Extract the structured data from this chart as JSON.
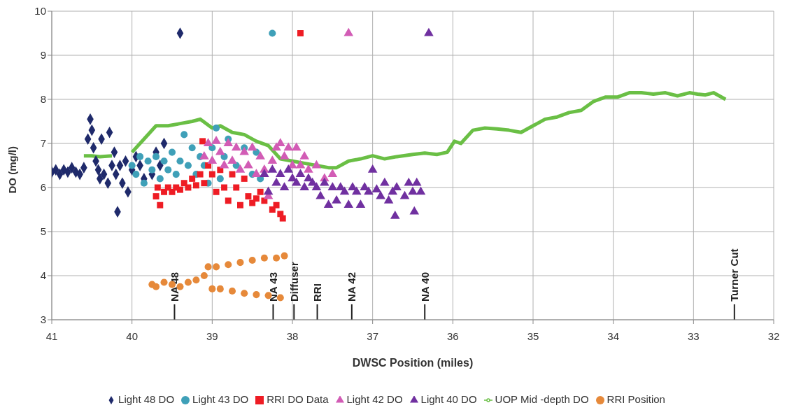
{
  "chart_data": {
    "type": "scatter",
    "xlabel": "DWSC Position (miles)",
    "ylabel": "DO (mg/l)",
    "xlim": [
      41,
      32
    ],
    "xticks": [
      41,
      40,
      39,
      38,
      37,
      36,
      35,
      34,
      33,
      32
    ],
    "ylim": [
      3,
      10
    ],
    "yticks": [
      3,
      4,
      5,
      6,
      7,
      8,
      9,
      10
    ],
    "grid": true,
    "legend": "bottom",
    "series": [
      {
        "name": "Light 48 DO",
        "color": "#1f2a6b",
        "marker": "diamond",
        "x": [
          41.0,
          40.95,
          40.9,
          40.85,
          40.8,
          40.75,
          40.7,
          40.65,
          40.6,
          40.55,
          40.52,
          40.5,
          40.48,
          40.45,
          40.42,
          40.4,
          40.38,
          40.35,
          40.3,
          40.28,
          40.25,
          40.22,
          40.2,
          40.18,
          40.15,
          40.12,
          40.08,
          40.05,
          40.0,
          39.95,
          39.9,
          39.85,
          39.8,
          39.75,
          39.7,
          39.65,
          39.6,
          39.55,
          39.4
        ],
        "values": [
          6.35,
          6.4,
          6.3,
          6.4,
          6.35,
          6.45,
          6.35,
          6.3,
          6.45,
          7.1,
          7.55,
          7.3,
          6.9,
          6.6,
          6.4,
          6.2,
          7.1,
          6.3,
          6.1,
          7.25,
          6.5,
          6.8,
          6.3,
          5.45,
          6.5,
          6.1,
          6.6,
          5.9,
          6.4,
          6.7,
          6.5,
          6.2,
          null,
          6.3,
          6.8,
          6.5,
          7.0,
          null,
          9.5
        ]
      },
      {
        "name": "Light 43 DO",
        "color": "#3fa0b8",
        "marker": "circle",
        "x": [
          40.0,
          39.95,
          39.9,
          39.85,
          39.8,
          39.75,
          39.7,
          39.65,
          39.6,
          39.55,
          39.5,
          39.45,
          39.4,
          39.35,
          39.3,
          39.25,
          39.2,
          39.15,
          39.1,
          39.05,
          39.0,
          38.95,
          38.9,
          38.85,
          38.8,
          38.7,
          38.6,
          38.5,
          38.45,
          38.4,
          38.3,
          38.25
        ],
        "values": [
          6.5,
          6.3,
          6.7,
          6.1,
          6.6,
          6.4,
          6.7,
          6.2,
          6.6,
          6.4,
          6.8,
          6.3,
          6.6,
          7.2,
          6.5,
          6.9,
          6.3,
          6.7,
          6.5,
          6.1,
          6.9,
          7.35,
          6.2,
          6.7,
          7.1,
          6.5,
          6.9,
          6.3,
          6.8,
          6.2,
          null,
          9.5
        ]
      },
      {
        "name": "RRI DO Data",
        "color": "#ee1c24",
        "marker": "square",
        "x": [
          39.7,
          39.68,
          39.65,
          39.6,
          39.55,
          39.5,
          39.45,
          39.4,
          39.35,
          39.3,
          39.25,
          39.2,
          39.15,
          39.12,
          39.1,
          39.05,
          39.0,
          38.95,
          38.9,
          38.85,
          38.8,
          38.75,
          38.7,
          38.65,
          38.6,
          38.55,
          38.5,
          38.45,
          38.4,
          38.35,
          38.3,
          38.25,
          38.2,
          38.15,
          38.12,
          37.9
        ],
        "values": [
          5.8,
          6.0,
          5.6,
          5.9,
          6.0,
          5.9,
          6.0,
          5.95,
          6.1,
          6.0,
          6.2,
          6.05,
          6.3,
          7.05,
          6.1,
          6.5,
          6.3,
          5.9,
          6.4,
          6.0,
          5.7,
          6.3,
          6.0,
          5.6,
          6.2,
          5.8,
          5.65,
          5.75,
          5.9,
          5.7,
          null,
          5.5,
          5.6,
          5.4,
          5.3,
          9.5
        ]
      },
      {
        "name": "Light 42 DO",
        "color": "#d25cb5",
        "marker": "triangle",
        "x": [
          39.1,
          39.05,
          39.0,
          38.95,
          38.9,
          38.85,
          38.8,
          38.75,
          38.7,
          38.65,
          38.6,
          38.55,
          38.5,
          38.45,
          38.4,
          38.35,
          38.3,
          38.25,
          38.2,
          38.15,
          38.1,
          38.05,
          38.0,
          37.95,
          37.9,
          37.85,
          37.8,
          37.7,
          37.6,
          37.5,
          37.3
        ],
        "values": [
          6.7,
          7.0,
          6.6,
          7.05,
          6.8,
          6.5,
          7.0,
          6.6,
          6.9,
          6.4,
          6.8,
          6.5,
          6.9,
          6.3,
          6.7,
          6.4,
          5.8,
          6.6,
          6.9,
          7.0,
          6.7,
          6.9,
          6.5,
          6.9,
          6.5,
          6.7,
          6.4,
          6.5,
          6.2,
          6.3,
          9.5
        ]
      },
      {
        "name": "Light 40 DO",
        "color": "#7030a0",
        "marker": "triangle",
        "x": [
          38.35,
          38.3,
          38.25,
          38.2,
          38.15,
          38.1,
          38.05,
          38.0,
          37.95,
          37.9,
          37.85,
          37.8,
          37.75,
          37.7,
          37.65,
          37.6,
          37.55,
          37.5,
          37.45,
          37.4,
          37.35,
          37.3,
          37.25,
          37.2,
          37.15,
          37.1,
          37.05,
          37.0,
          36.95,
          36.9,
          36.85,
          36.8,
          36.75,
          36.72,
          36.7,
          36.6,
          36.55,
          36.5,
          36.48,
          36.45,
          36.4,
          36.3
        ],
        "values": [
          6.3,
          5.9,
          6.4,
          6.1,
          6.3,
          6.0,
          6.4,
          6.2,
          6.1,
          6.3,
          6.0,
          6.2,
          6.1,
          6.0,
          5.8,
          6.1,
          5.6,
          6.0,
          5.7,
          6.0,
          5.9,
          5.6,
          6.0,
          5.9,
          5.6,
          6.0,
          5.9,
          6.4,
          5.95,
          5.8,
          6.1,
          5.7,
          5.9,
          5.35,
          6.0,
          5.8,
          6.1,
          5.9,
          5.45,
          6.1,
          5.9,
          9.5
        ]
      },
      {
        "name": "UOP Mid -depth  DO",
        "type": "line",
        "color": "#6abf45",
        "marker": "none",
        "x": [
          40.6,
          40.5,
          40.4,
          40.25,
          40.2,
          40.0,
          39.85,
          39.7,
          39.55,
          39.4,
          39.25,
          39.15,
          39.0,
          38.9,
          38.75,
          38.6,
          38.45,
          38.3,
          38.15,
          38.0,
          37.85,
          37.7,
          37.55,
          37.45,
          37.3,
          37.15,
          37.0,
          36.85,
          36.7,
          36.5,
          36.35,
          36.2,
          36.07,
          35.98,
          35.9,
          35.75,
          35.6,
          35.45,
          35.3,
          35.15,
          35.0,
          34.85,
          34.7,
          34.55,
          34.4,
          34.25,
          34.1,
          33.95,
          33.8,
          33.65,
          33.5,
          33.35,
          33.2,
          33.05,
          32.95,
          32.85,
          32.75,
          32.6
        ],
        "values": [
          6.72,
          6.72,
          6.7,
          6.72,
          null,
          6.8,
          7.1,
          7.4,
          7.4,
          7.45,
          7.5,
          7.55,
          7.35,
          7.4,
          7.25,
          7.2,
          7.05,
          6.95,
          6.65,
          6.6,
          6.55,
          6.5,
          6.45,
          6.45,
          6.6,
          6.65,
          6.72,
          6.65,
          6.7,
          6.75,
          6.78,
          6.75,
          6.8,
          7.05,
          7.0,
          7.3,
          7.35,
          7.33,
          7.3,
          7.25,
          7.4,
          7.55,
          7.6,
          7.7,
          7.75,
          7.95,
          8.05,
          8.05,
          8.15,
          8.15,
          8.12,
          8.15,
          8.08,
          8.15,
          8.12,
          8.1,
          8.15,
          8.0
        ]
      },
      {
        "name": "RRI Position",
        "color": "#e6893a",
        "marker": "circle",
        "x": [
          39.75,
          39.7,
          39.6,
          39.5,
          39.4,
          39.3,
          39.2,
          39.1,
          39.05,
          38.95,
          38.8,
          38.65,
          38.5,
          38.35,
          38.2,
          38.1,
          39.0,
          38.9,
          38.75,
          38.6,
          38.45,
          38.3,
          38.15
        ],
        "values": [
          3.8,
          3.75,
          3.85,
          3.8,
          3.75,
          3.85,
          3.9,
          4.0,
          4.2,
          4.2,
          4.25,
          4.3,
          4.35,
          4.4,
          4.4,
          4.45,
          3.7,
          3.7,
          3.65,
          3.6,
          3.57,
          3.55,
          3.5
        ]
      }
    ],
    "ref_lines": [
      {
        "axis": "x",
        "value": 39.47,
        "label": "NA 48"
      },
      {
        "axis": "x",
        "value": 38.24,
        "label": "NA 43"
      },
      {
        "axis": "x",
        "value": 37.98,
        "label": "Diffuser"
      },
      {
        "axis": "x",
        "value": 37.69,
        "label": "RRI"
      },
      {
        "axis": "x",
        "value": 37.26,
        "label": "NA 42"
      },
      {
        "axis": "x",
        "value": 36.35,
        "label": "NA 40"
      },
      {
        "axis": "x",
        "value": 32.49,
        "label": "Turner Cut"
      }
    ]
  }
}
